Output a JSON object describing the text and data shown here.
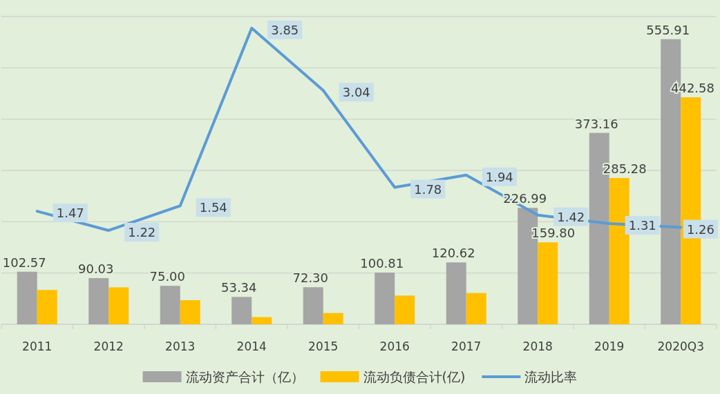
{
  "chart_data": {
    "type": "bar",
    "categories": [
      "2011",
      "2012",
      "2013",
      "2014",
      "2015",
      "2016",
      "2017",
      "2018",
      "2019",
      "2020Q3"
    ],
    "series": [
      {
        "name": "流动资产合计（亿）",
        "color": "#a5a5a5",
        "values": [
          102.57,
          90.03,
          75.0,
          53.34,
          72.3,
          100.81,
          120.62,
          226.99,
          373.16,
          555.91
        ],
        "value_labels": [
          "102.57",
          "90.03",
          "75.00",
          "53.34",
          "72.30",
          "100.81",
          "120.62",
          "226.99",
          "373.16",
          "555.91"
        ]
      },
      {
        "name": "流动负债合计(亿)",
        "color": "#ffc000",
        "values": [
          67,
          72,
          47,
          14,
          22,
          56,
          61,
          159.8,
          285.28,
          442.58
        ],
        "value_labels": [
          null,
          null,
          null,
          null,
          null,
          null,
          null,
          "159.80",
          "285.28",
          "442.58"
        ]
      },
      {
        "name": "流动比率",
        "type": "line",
        "axis": "y2",
        "color": "#5b9bd5",
        "values": [
          1.47,
          1.22,
          1.54,
          3.85,
          3.04,
          1.78,
          1.94,
          1.42,
          1.31,
          1.26
        ],
        "value_labels": [
          "1.47",
          "1.22",
          "1.54",
          "3.85",
          "3.04",
          "1.78",
          "1.94",
          "1.42",
          "1.31",
          "1.26"
        ]
      }
    ],
    "ylim": [
      0,
      600
    ],
    "yticks": [
      {
        "value": 0,
        "label": null
      },
      {
        "value": 100,
        "label": null
      },
      {
        "value": 200,
        "label": null
      },
      {
        "value": 300,
        "label": null
      },
      {
        "value": 400,
        "label": null
      },
      {
        "value": 500,
        "label": null
      },
      {
        "value": 600,
        "label": null
      }
    ],
    "y2lim": [
      0,
      4
    ],
    "grid": "y",
    "legend": "bottom",
    "tick_labels": "x",
    "marker": "none",
    "line_style": "solid"
  }
}
